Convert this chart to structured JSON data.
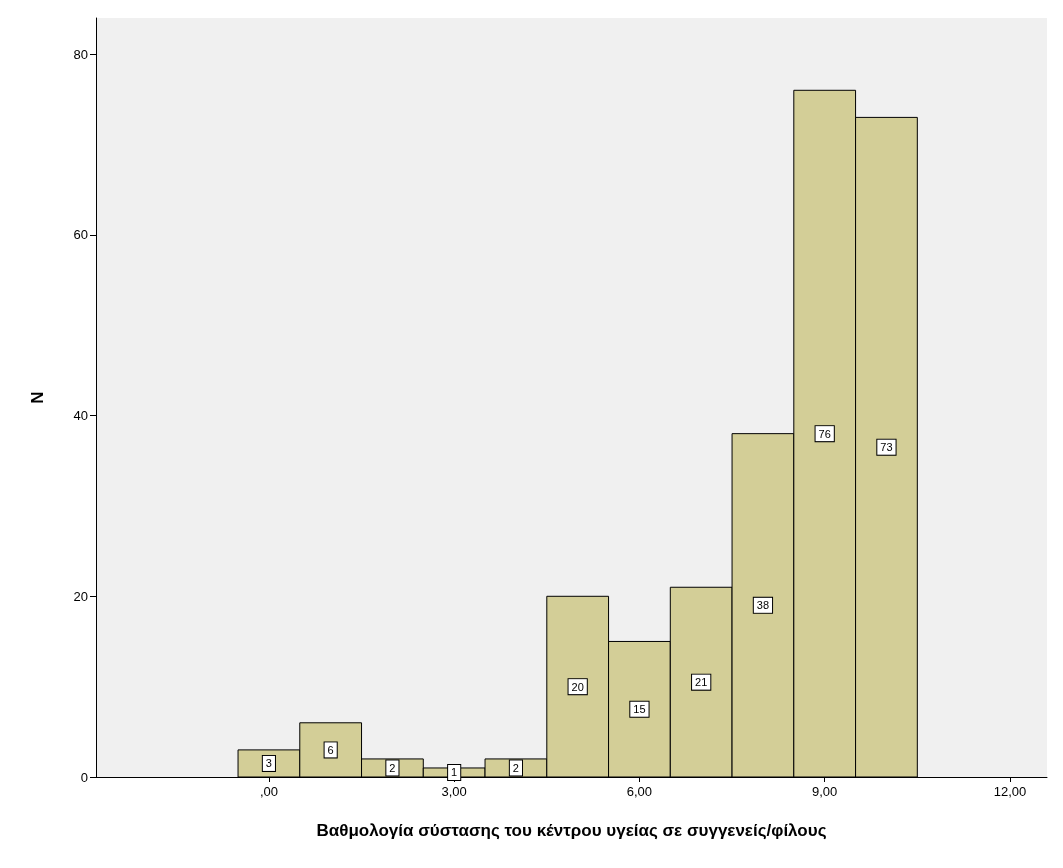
{
  "chart_data": {
    "type": "histogram",
    "xlabel": "Βαθμολογία σύστασης του κέντρου υγείας σε συγγενείς/φίλους",
    "ylabel": "N",
    "bins": [
      -0.5,
      0.5,
      1.5,
      2.5,
      3.5,
      4.5,
      5.5,
      6.5,
      7.5,
      8.5,
      9.5,
      10.5
    ],
    "values": [
      3,
      6,
      2,
      1,
      2,
      20,
      15,
      21,
      38,
      76,
      73
    ],
    "color": "#d3ce97",
    "xlim": [
      -2.8,
      12.6
    ],
    "xticks": [
      {
        "value": 0,
        "label": ",00"
      },
      {
        "value": 3,
        "label": "3,00"
      },
      {
        "value": 6,
        "label": "6,00"
      },
      {
        "value": 9,
        "label": "9,00"
      },
      {
        "value": 12,
        "label": "12,00"
      }
    ],
    "ylim": [
      0,
      84
    ],
    "yticks": [
      0,
      20,
      40,
      60,
      80
    ],
    "data_labels": true,
    "grid": false
  }
}
